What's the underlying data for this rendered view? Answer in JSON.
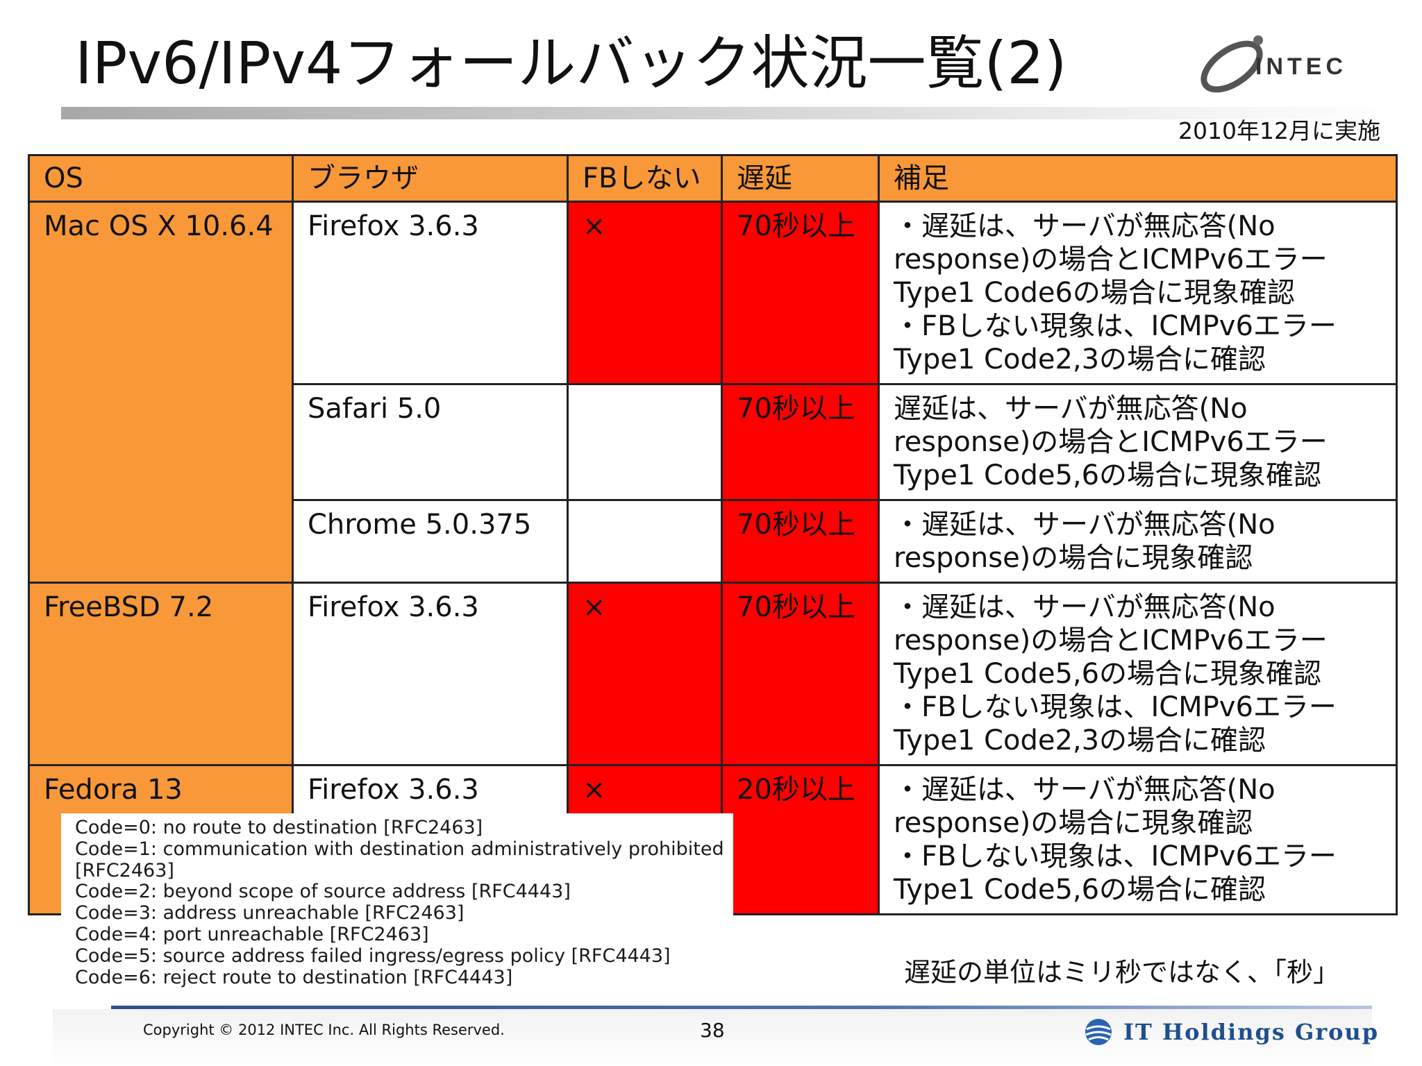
{
  "header": {
    "title": "IPv6/IPv4フォールバック状況一覧(2)",
    "logo_text": "INTEC",
    "date_note": "2010年12月に実施"
  },
  "table": {
    "headers": [
      "OS",
      "ブラウザ",
      "FBしない",
      "遅延",
      "補足"
    ],
    "rows": [
      {
        "os": "Mac OS X 10.6.4",
        "browser": "Firefox 3.6.3",
        "fb": "×",
        "delay": "70秒以上",
        "notes": [
          "・遅延は、サーバが無応答(No",
          "response)の場合とICMPv6エラー",
          "Type1 Code6の場合に現象確認",
          "・FBしない現象は、ICMPv6エラー",
          "Type1 Code2,3の場合に確認"
        ]
      },
      {
        "os": "",
        "browser": "Safari 5.0",
        "fb": "",
        "delay": "70秒以上",
        "notes": [
          "遅延は、サーバが無応答(No",
          "response)の場合とICMPv6エラー",
          "Type1 Code5,6の場合に現象確認"
        ]
      },
      {
        "os": "",
        "browser": "Chrome 5.0.375",
        "fb": "",
        "delay": "70秒以上",
        "notes": [
          "・遅延は、サーバが無応答(No",
          "response)の場合に現象確認"
        ]
      },
      {
        "os": "FreeBSD 7.2",
        "browser": "Firefox 3.6.3",
        "fb": "×",
        "delay": "70秒以上",
        "notes": [
          "・遅延は、サーバが無応答(No",
          "response)の場合とICMPv6エラー",
          "Type1 Code5,6の場合に現象確認",
          "・FBしない現象は、ICMPv6エラー",
          "Type1 Code2,3の場合に確認"
        ]
      },
      {
        "os": "Fedora 13",
        "browser": "Firefox 3.6.3",
        "fb": "×",
        "delay": "20秒以上",
        "notes": [
          "・遅延は、サーバが無応答(No",
          "response)の場合に現象確認",
          "・FBしない現象は、ICMPv6エラー",
          "Type1 Code5,6の場合に確認"
        ]
      }
    ]
  },
  "codes": [
    "Code=0: no route to destination [RFC2463]",
    "Code=1: communication with destination administratively prohibited",
    "[RFC2463]",
    "Code=2: beyond scope of source address [RFC4443]",
    "Code=3: address unreachable [RFC2463]",
    "Code=4: port unreachable [RFC2463]",
    "Code=5: source address failed ingress/egress policy [RFC4443]",
    "Code=6: reject route to destination [RFC4443]"
  ],
  "unit_note": "遅延の単位はミリ秒ではなく、「秒」",
  "footer": {
    "copyright": "Copyright © 2012 INTEC Inc. All Rights Reserved.",
    "page_number": "38",
    "group_name": "IT Holdings Group"
  },
  "colors": {
    "orange": "#f89838",
    "red": "#ff0000",
    "footer_blue": "#1d4f8e"
  }
}
